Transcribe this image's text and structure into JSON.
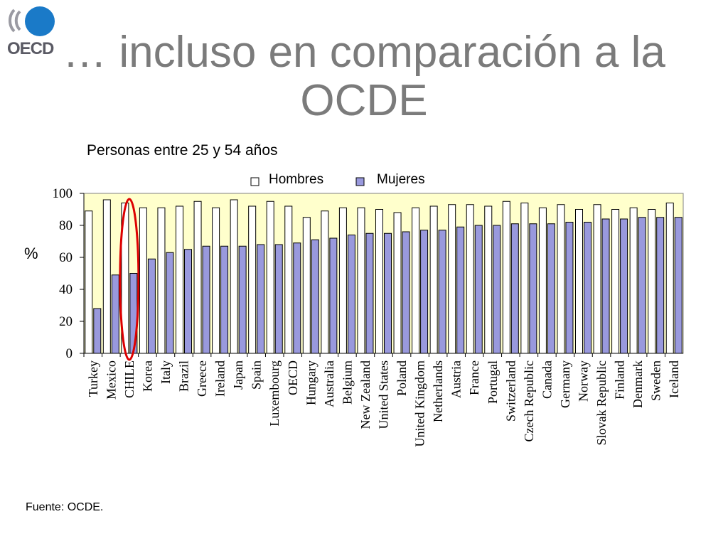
{
  "slide": {
    "title_line1": "… incluso en comparación a la",
    "title_line2": "OCDE",
    "subtitle": "Personas entre 25 y 54 años",
    "source": "Fuente: OCDE.",
    "logo_text": "OECD"
  },
  "colors": {
    "plot_bg": "#ffffcc",
    "hombres_fill": "#ffffff",
    "mujeres_fill": "#9999dd",
    "highlight": "#dd0000",
    "title": "#7b7b7b",
    "logo_blue": "#1a7ac8"
  },
  "chart_data": {
    "type": "bar",
    "title": "Personas entre 25 y 54 años",
    "xlabel": "",
    "ylabel": "%",
    "ylim": [
      0,
      100
    ],
    "yticks": [
      "0",
      "20",
      "40",
      "60",
      "80",
      "100"
    ],
    "legend": {
      "placement": "top"
    },
    "highlight_category": "CHILE",
    "categories": [
      "Turkey",
      "Mexico",
      "CHILE",
      "Korea",
      "Italy",
      "Brazil",
      "Greece",
      "Ireland",
      "Japan",
      "Spain",
      "Luxembourg",
      "OECD",
      "Hungary",
      "Australia",
      "Belgium",
      "New Zealand",
      "United States",
      "Poland",
      "United Kingdom",
      "Netherlands",
      "Austria",
      "France",
      "Portugal",
      "Switzerland",
      "Czech Republic",
      "Canada",
      "Germany",
      "Norway",
      "Slovak Republic",
      "Finland",
      "Denmark",
      "Sweden",
      "Iceland"
    ],
    "series": [
      {
        "name": "Hombres",
        "values": [
          89,
          96,
          94,
          91,
          91,
          92,
          95,
          91,
          96,
          92,
          95,
          92,
          85,
          89,
          91,
          91,
          90,
          88,
          91,
          92,
          93,
          93,
          92,
          95,
          94,
          91,
          93,
          90,
          93,
          90,
          91,
          90,
          94
        ]
      },
      {
        "name": "Mujeres",
        "values": [
          28,
          49,
          50,
          59,
          63,
          65,
          67,
          67,
          67,
          68,
          68,
          69,
          71,
          72,
          74,
          75,
          75,
          76,
          77,
          77,
          79,
          80,
          80,
          81,
          81,
          81,
          82,
          82,
          84,
          84,
          85,
          85,
          85
        ]
      }
    ]
  }
}
